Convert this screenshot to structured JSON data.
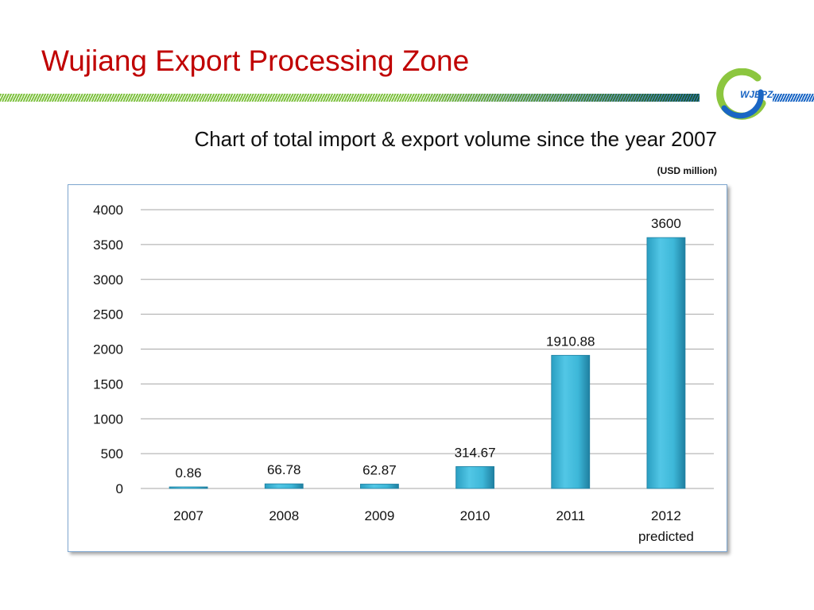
{
  "page": {
    "title": "Wujiang Export Processing Zone",
    "logo_text": "WJEPZ",
    "colors": {
      "title": "#c00000",
      "band_green": "#7fc241",
      "band_blue": "#1a66c4",
      "bar": "#3db7d8"
    }
  },
  "chart_data": {
    "type": "bar",
    "title": "Chart of total import & export volume since the year 2007",
    "subtitle": "(USD  million)",
    "categories": [
      [
        "2007"
      ],
      [
        "2008"
      ],
      [
        "2009"
      ],
      [
        "2010"
      ],
      [
        "2011"
      ],
      [
        "2012",
        "predicted"
      ]
    ],
    "values": [
      0.86,
      66.78,
      62.87,
      314.67,
      1910.88,
      3600
    ],
    "value_labels": [
      "0.86",
      "66.78",
      "62.87",
      "314.67",
      "1910.88",
      "3600"
    ],
    "yticks": [
      "0",
      "500",
      "1000",
      "1500",
      "2000",
      "2500",
      "3000",
      "3500",
      "4000"
    ],
    "ylim": [
      0,
      4000
    ],
    "grid": true,
    "legend": "none"
  }
}
